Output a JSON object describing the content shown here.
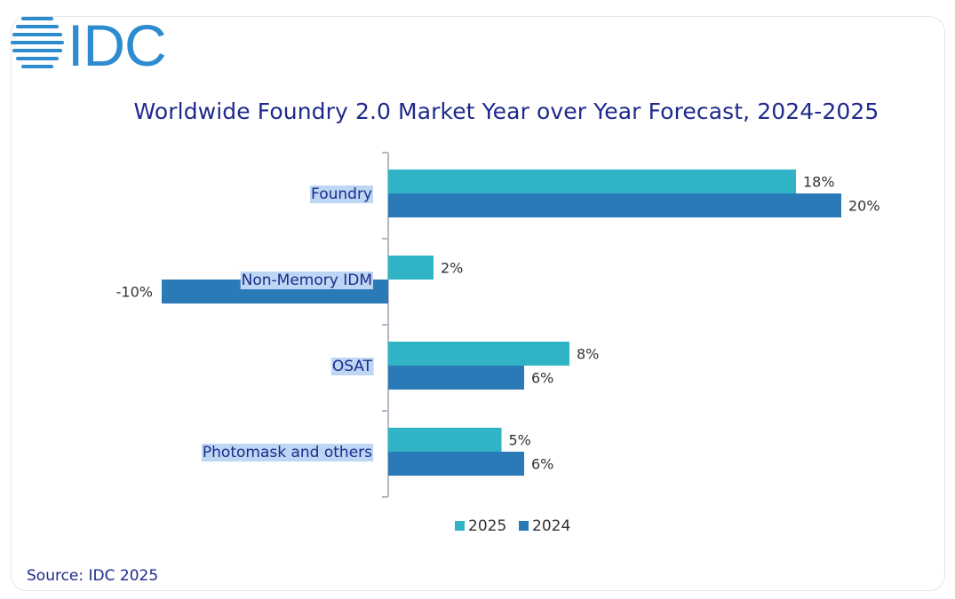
{
  "logo": {
    "text": "IDC",
    "color": "#2d8bd0"
  },
  "chart_data": {
    "type": "bar",
    "orientation": "horizontal",
    "title": "Worldwide Foundry 2.0 Market Year over Year Forecast, 2024-2025",
    "categories": [
      "Foundry",
      "Non-Memory IDM",
      "OSAT",
      "Photomask and others"
    ],
    "series": [
      {
        "name": "2025",
        "color": "#2fb3c5",
        "values": [
          18,
          2,
          8,
          5
        ],
        "labels": [
          "18%",
          "2%",
          "8%",
          "5%"
        ]
      },
      {
        "name": "2024",
        "color": "#2a7ab8",
        "values": [
          20,
          -10,
          6,
          6
        ],
        "labels": [
          "20%",
          "-10%",
          "6%",
          "6%"
        ]
      }
    ],
    "unit": "%",
    "legend_position": "bottom",
    "grid": false
  },
  "source": "Source: IDC 2025",
  "colors": {
    "text": "#1e2a8c",
    "axis": "#b8b8c4",
    "label_highlight": "#bcd6f3"
  }
}
